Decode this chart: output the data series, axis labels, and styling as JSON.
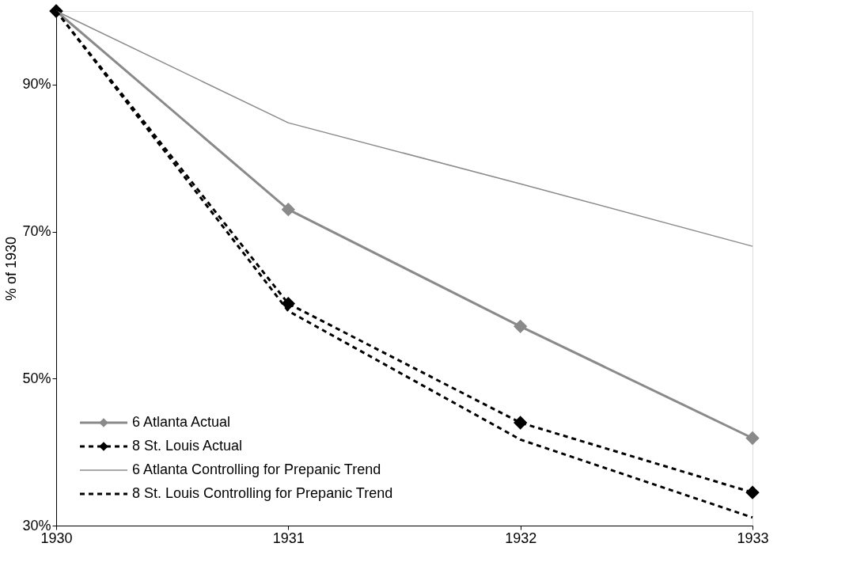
{
  "chart_data": {
    "type": "line",
    "ylabel": "% of 1930",
    "categories": [
      "1930",
      "1931",
      "1932",
      "1933"
    ],
    "series": [
      {
        "name": "6 Atlanta Actual",
        "color": "#8a8a8a",
        "marker": "diamond",
        "line_style": "solid",
        "values": [
          100,
          73,
          57.1,
          41.9
        ]
      },
      {
        "name": "8 St. Louis Actual",
        "color": "#000000",
        "marker": "diamond",
        "line_style": "dashed",
        "values": [
          100,
          60.2,
          44,
          34.5
        ]
      },
      {
        "name": "6 Atlanta Controlling for Prepanic Trend",
        "color": "#8a8a8a",
        "marker": "none",
        "line_style": "solid",
        "values": [
          100,
          84.8,
          76.5,
          68
        ]
      },
      {
        "name": "8 St. Louis Controlling for Prepanic Trend",
        "color": "#000000",
        "marker": "none",
        "line_style": "dashed",
        "values": [
          100,
          59.2,
          41.7,
          31.1
        ]
      }
    ],
    "ylim": [
      30,
      100
    ],
    "yticks": [
      {
        "value": 30,
        "label": "30%"
      },
      {
        "value": 50,
        "label": "50%"
      },
      {
        "value": 70,
        "label": "70%"
      },
      {
        "value": 90,
        "label": "90%"
      }
    ],
    "grid": false,
    "legend": "bottom left"
  }
}
